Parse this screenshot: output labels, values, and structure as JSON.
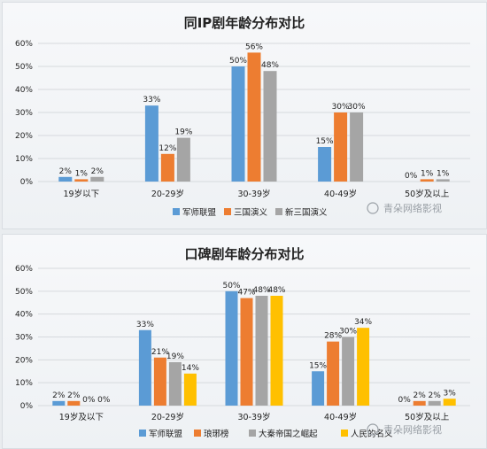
{
  "watermark": "青朵网络影视",
  "colors": {
    "blue": "#5b9bd5",
    "orange": "#ed7d31",
    "gray": "#a5a5a5",
    "yellow": "#ffc000"
  },
  "chart_data": [
    {
      "type": "bar",
      "title": "同IP剧年龄分布对比",
      "categories": [
        "19岁以下",
        "20-29岁",
        "30-39岁",
        "40-49岁",
        "50岁及以上"
      ],
      "ylim": [
        0,
        60
      ],
      "yticks": [
        "0%",
        "10%",
        "20%",
        "30%",
        "40%",
        "50%",
        "60%"
      ],
      "legend_position": "bottom",
      "series": [
        {
          "name": "军师联盟",
          "color": "#5b9bd5",
          "values": [
            2,
            33,
            50,
            15,
            0
          ],
          "labels": [
            "2%",
            "33%",
            "50%",
            "15%",
            "0%"
          ]
        },
        {
          "name": "三国演义",
          "color": "#ed7d31",
          "values": [
            1,
            12,
            56,
            30,
            1
          ],
          "labels": [
            "1%",
            "12%",
            "56%",
            "30%",
            "1%"
          ]
        },
        {
          "name": "新三国演义",
          "color": "#a5a5a5",
          "values": [
            2,
            19,
            48,
            30,
            1
          ],
          "labels": [
            "2%",
            "19%",
            "48%",
            "30%",
            "1%"
          ]
        }
      ]
    },
    {
      "type": "bar",
      "title": "口碑剧年龄分布对比",
      "categories": [
        "19岁及以下",
        "20-29岁",
        "30-39岁",
        "40-49岁",
        "50岁及以上"
      ],
      "ylim": [
        0,
        60
      ],
      "yticks": [
        "0%",
        "10%",
        "20%",
        "30%",
        "40%",
        "50%",
        "60%"
      ],
      "legend_position": "bottom",
      "series": [
        {
          "name": "军师联盟",
          "color": "#5b9bd5",
          "values": [
            2,
            33,
            50,
            15,
            0
          ],
          "labels": [
            "2%",
            "33%",
            "50%",
            "15%",
            "0%"
          ]
        },
        {
          "name": "琅琊榜",
          "color": "#ed7d31",
          "values": [
            2,
            21,
            47,
            28,
            2
          ],
          "labels": [
            "2%",
            "21%",
            "47%",
            "28%",
            "2%"
          ]
        },
        {
          "name": "大秦帝国之崛起",
          "color": "#a5a5a5",
          "values": [
            0,
            19,
            48,
            30,
            2
          ],
          "labels": [
            "0%",
            "19%",
            "48%",
            "30%",
            "2%"
          ]
        },
        {
          "name": "人民的名义",
          "color": "#ffc000",
          "values": [
            0,
            14,
            48,
            34,
            3
          ],
          "labels": [
            "0%",
            "14%",
            "48%",
            "34%",
            "3%"
          ]
        }
      ]
    }
  ]
}
